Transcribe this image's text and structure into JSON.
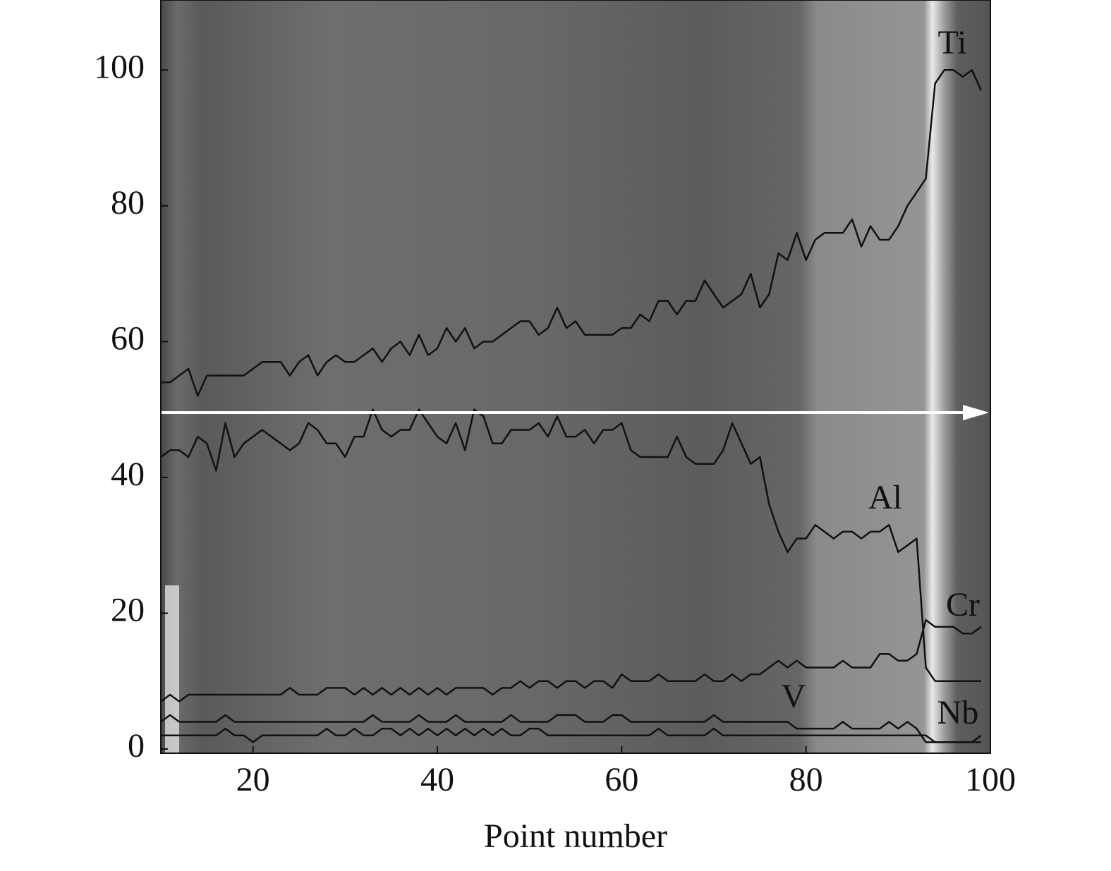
{
  "chart_data": {
    "type": "line",
    "x_label": "Point number",
    "x": [
      10,
      11,
      12,
      13,
      14,
      15,
      16,
      17,
      18,
      19,
      20,
      21,
      22,
      23,
      24,
      25,
      26,
      27,
      28,
      29,
      30,
      31,
      32,
      33,
      34,
      35,
      36,
      37,
      38,
      39,
      40,
      41,
      42,
      43,
      44,
      45,
      46,
      47,
      48,
      49,
      50,
      51,
      52,
      53,
      54,
      55,
      56,
      57,
      58,
      59,
      60,
      61,
      62,
      63,
      64,
      65,
      66,
      67,
      68,
      69,
      70,
      71,
      72,
      73,
      74,
      75,
      76,
      77,
      78,
      79,
      80,
      81,
      82,
      83,
      84,
      85,
      86,
      87,
      88,
      89,
      90,
      91,
      92,
      93,
      94,
      95,
      96,
      97,
      98,
      99
    ],
    "series": [
      {
        "name": "Ti",
        "color": "#111111",
        "values": [
          54,
          54,
          55,
          56,
          52,
          55,
          55,
          55,
          55,
          55,
          56,
          57,
          57,
          57,
          55,
          57,
          58,
          55,
          57,
          58,
          57,
          57,
          58,
          59,
          57,
          59,
          60,
          58,
          61,
          58,
          59,
          62,
          60,
          62,
          59,
          60,
          60,
          61,
          62,
          63,
          63,
          61,
          62,
          65,
          62,
          63,
          61,
          61,
          61,
          61,
          62,
          62,
          64,
          63,
          66,
          66,
          64,
          66,
          66,
          69,
          67,
          65,
          66,
          67,
          70,
          65,
          67,
          73,
          72,
          76,
          72,
          75,
          76,
          76,
          76,
          78,
          74,
          77,
          75,
          75,
          77,
          80,
          82,
          84,
          98,
          100,
          100,
          99,
          100,
          97
        ]
      },
      {
        "name": "Al",
        "color": "#111111",
        "values": [
          43,
          44,
          44,
          43,
          46,
          45,
          41,
          48,
          43,
          45,
          46,
          47,
          46,
          45,
          44,
          45,
          48,
          47,
          45,
          45,
          43,
          46,
          46,
          50,
          47,
          46,
          47,
          47,
          50,
          48,
          46,
          45,
          48,
          44,
          50,
          49,
          45,
          45,
          47,
          47,
          47,
          48,
          46,
          49,
          46,
          46,
          47,
          45,
          47,
          47,
          48,
          44,
          43,
          43,
          43,
          43,
          46,
          43,
          42,
          42,
          42,
          44,
          48,
          45,
          42,
          43,
          36,
          32,
          29,
          31,
          31,
          33,
          32,
          31,
          32,
          32,
          31,
          32,
          32,
          33,
          29,
          30,
          31,
          12,
          10,
          10,
          10,
          10,
          10,
          10
        ]
      },
      {
        "name": "Cr",
        "color": "#111111",
        "values": [
          7,
          8,
          7,
          8,
          8,
          8,
          8,
          8,
          8,
          8,
          8,
          8,
          8,
          8,
          9,
          8,
          8,
          8,
          9,
          9,
          9,
          8,
          9,
          8,
          9,
          8,
          9,
          8,
          9,
          8,
          9,
          8,
          9,
          9,
          9,
          9,
          8,
          9,
          9,
          10,
          9,
          10,
          10,
          9,
          10,
          10,
          9,
          10,
          10,
          9,
          11,
          10,
          10,
          10,
          11,
          10,
          10,
          10,
          10,
          11,
          10,
          10,
          11,
          10,
          11,
          11,
          12,
          13,
          12,
          13,
          12,
          12,
          12,
          12,
          13,
          12,
          12,
          12,
          14,
          14,
          13,
          13,
          14,
          19,
          18,
          18,
          18,
          17,
          17,
          18
        ]
      },
      {
        "name": "V",
        "color": "#111111",
        "values": [
          2,
          2,
          2,
          2,
          2,
          2,
          2,
          3,
          2,
          2,
          1,
          2,
          2,
          2,
          2,
          2,
          2,
          2,
          3,
          2,
          2,
          3,
          2,
          2,
          3,
          3,
          2,
          3,
          2,
          3,
          2,
          3,
          2,
          3,
          2,
          3,
          2,
          3,
          2,
          2,
          3,
          3,
          2,
          2,
          2,
          2,
          2,
          2,
          2,
          2,
          2,
          2,
          2,
          2,
          3,
          2,
          2,
          2,
          2,
          2,
          3,
          2,
          2,
          2,
          2,
          2,
          2,
          2,
          2,
          2,
          2,
          2,
          2,
          2,
          2,
          2,
          2,
          2,
          2,
          2,
          2,
          2,
          2,
          2,
          1,
          1,
          1,
          1,
          1,
          1
        ]
      },
      {
        "name": "Nb",
        "color": "#111111",
        "values": [
          4,
          5,
          4,
          4,
          4,
          4,
          4,
          5,
          4,
          4,
          4,
          4,
          4,
          4,
          4,
          4,
          4,
          4,
          4,
          4,
          4,
          4,
          4,
          5,
          4,
          4,
          4,
          4,
          5,
          4,
          4,
          4,
          5,
          4,
          4,
          4,
          4,
          4,
          5,
          4,
          4,
          4,
          4,
          5,
          5,
          5,
          4,
          4,
          4,
          5,
          5,
          4,
          4,
          4,
          4,
          4,
          4,
          4,
          4,
          4,
          5,
          4,
          4,
          4,
          4,
          4,
          4,
          4,
          4,
          3,
          3,
          3,
          3,
          3,
          4,
          3,
          3,
          3,
          3,
          4,
          3,
          4,
          3,
          1,
          1,
          1,
          1,
          1,
          1,
          2
        ]
      }
    ],
    "xlim": [
      10,
      100
    ],
    "xticks": [
      20,
      40,
      60,
      80,
      100
    ],
    "ylim": [
      0,
      110
    ],
    "yticks": [
      0,
      20,
      40,
      60,
      80,
      100
    ]
  }
}
